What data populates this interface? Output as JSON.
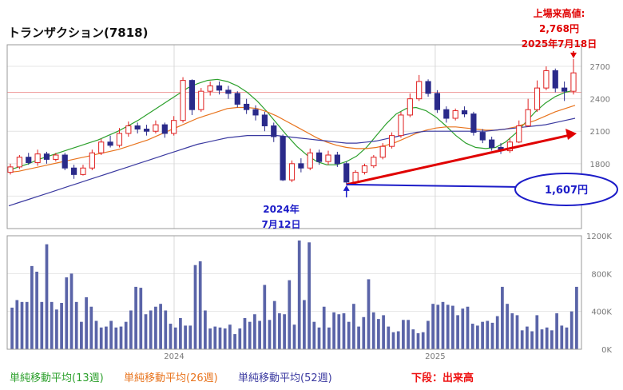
{
  "title": "トランザクション(7818)",
  "annotations": {
    "high_line1": "上場来高値:",
    "high_line2": "2,768円",
    "high_line3": "2025年7月18日",
    "low_line1": "2024年",
    "low_line2": "7月12日",
    "low_box": "1,607円"
  },
  "legend": {
    "ma13": "単純移動平均(13週)",
    "ma26": "単純移動平均(26週)",
    "ma52": "単純移動平均(52週)",
    "volume_note": "下段：出来高"
  },
  "colors": {
    "up": "#e02020",
    "down": "#2a2a8a",
    "ma13": "#2ca02c",
    "ma26": "#e8741e",
    "ma52": "#3b3aa0",
    "volume": "#5a64a8",
    "trend": "#e00000",
    "support": "#1c1cc8"
  },
  "chart_data": [
    {
      "type": "candlestick",
      "ylim": [
        1200,
        2900
      ],
      "yticks": [
        "1500",
        "1800",
        "2100",
        "2400",
        "2700"
      ],
      "xticks": [
        "2024",
        "2025"
      ],
      "x_range": [
        "2023-05-12",
        "2025-07-25"
      ],
      "hline": 2460,
      "series": [
        {
          "name": "単純移動平均(13週)",
          "values": [
            1740,
            1770,
            1800,
            1840,
            1870,
            1900,
            1930,
            1960,
            1990,
            2020,
            2060,
            2100,
            2150,
            2200,
            2260,
            2320,
            2380,
            2440,
            2500,
            2540,
            2570,
            2580,
            2560,
            2520,
            2460,
            2380,
            2280,
            2170,
            2060,
            1960,
            1880,
            1820,
            1790,
            1790,
            1820,
            1870,
            1950,
            2060,
            2170,
            2260,
            2310,
            2320,
            2290,
            2230,
            2150,
            2060,
            1990,
            1950,
            1940,
            1950,
            2000,
            2080,
            2180,
            2280,
            2360,
            2420,
            2460,
            2480
          ]
        },
        {
          "name": "単純移動平均(26週)",
          "values": [
            1720,
            1730,
            1750,
            1770,
            1790,
            1810,
            1830,
            1850,
            1870,
            1890,
            1910,
            1930,
            1960,
            1990,
            2020,
            2060,
            2100,
            2140,
            2180,
            2220,
            2250,
            2280,
            2310,
            2320,
            2320,
            2310,
            2280,
            2240,
            2190,
            2140,
            2090,
            2040,
            2000,
            1970,
            1950,
            1940,
            1940,
            1950,
            1970,
            2000,
            2040,
            2080,
            2110,
            2130,
            2140,
            2140,
            2130,
            2120,
            2110,
            2110,
            2120,
            2140,
            2170,
            2200,
            2240,
            2280,
            2310,
            2340
          ]
        },
        {
          "name": "単純移動平均(52週)",
          "values": [
            1410,
            1440,
            1470,
            1500,
            1530,
            1560,
            1590,
            1620,
            1650,
            1680,
            1710,
            1740,
            1770,
            1800,
            1830,
            1860,
            1890,
            1920,
            1950,
            1980,
            2000,
            2020,
            2040,
            2050,
            2060,
            2060,
            2060,
            2060,
            2050,
            2040,
            2030,
            2020,
            2010,
            2000,
            1990,
            1990,
            2000,
            2010,
            2030,
            2050,
            2070,
            2090,
            2100,
            2100,
            2100,
            2100,
            2100,
            2100,
            2100,
            2110,
            2120,
            2130,
            2140,
            2150,
            2160,
            2180,
            2200,
            2220
          ]
        }
      ],
      "candles": [
        {
          "o": 1720,
          "c": 1770,
          "h": 1800,
          "l": 1700
        },
        {
          "o": 1770,
          "c": 1860,
          "h": 1880,
          "l": 1750
        },
        {
          "o": 1860,
          "c": 1810,
          "h": 1900,
          "l": 1790
        },
        {
          "o": 1810,
          "c": 1890,
          "h": 1930,
          "l": 1780
        },
        {
          "o": 1890,
          "c": 1840,
          "h": 1910,
          "l": 1800
        },
        {
          "o": 1840,
          "c": 1880,
          "h": 1900,
          "l": 1820
        },
        {
          "o": 1880,
          "c": 1760,
          "h": 1900,
          "l": 1740
        },
        {
          "o": 1760,
          "c": 1700,
          "h": 1790,
          "l": 1660
        },
        {
          "o": 1700,
          "c": 1760,
          "h": 1790,
          "l": 1690
        },
        {
          "o": 1760,
          "c": 1900,
          "h": 1930,
          "l": 1740
        },
        {
          "o": 1900,
          "c": 2000,
          "h": 2030,
          "l": 1880
        },
        {
          "o": 2000,
          "c": 1970,
          "h": 2060,
          "l": 1950
        },
        {
          "o": 1970,
          "c": 2080,
          "h": 2130,
          "l": 1950
        },
        {
          "o": 2080,
          "c": 2150,
          "h": 2190,
          "l": 2050
        },
        {
          "o": 2150,
          "c": 2120,
          "h": 2180,
          "l": 2080
        },
        {
          "o": 2120,
          "c": 2100,
          "h": 2160,
          "l": 2060
        },
        {
          "o": 2100,
          "c": 2160,
          "h": 2200,
          "l": 2080
        },
        {
          "o": 2160,
          "c": 2080,
          "h": 2180,
          "l": 2040
        },
        {
          "o": 2080,
          "c": 2200,
          "h": 2240,
          "l": 2060
        },
        {
          "o": 2200,
          "c": 2570,
          "h": 2600,
          "l": 2180
        },
        {
          "o": 2570,
          "c": 2300,
          "h": 2580,
          "l": 2250
        },
        {
          "o": 2300,
          "c": 2470,
          "h": 2500,
          "l": 2280
        },
        {
          "o": 2470,
          "c": 2520,
          "h": 2560,
          "l": 2430
        },
        {
          "o": 2520,
          "c": 2480,
          "h": 2560,
          "l": 2440
        },
        {
          "o": 2480,
          "c": 2450,
          "h": 2520,
          "l": 2400
        },
        {
          "o": 2450,
          "c": 2350,
          "h": 2470,
          "l": 2320
        },
        {
          "o": 2350,
          "c": 2300,
          "h": 2400,
          "l": 2260
        },
        {
          "o": 2300,
          "c": 2250,
          "h": 2340,
          "l": 2200
        },
        {
          "o": 2250,
          "c": 2150,
          "h": 2280,
          "l": 2100
        },
        {
          "o": 2150,
          "c": 2050,
          "h": 2180,
          "l": 2000
        },
        {
          "o": 2050,
          "c": 1650,
          "h": 2070,
          "l": 1640
        },
        {
          "o": 1650,
          "c": 1800,
          "h": 1830,
          "l": 1630
        },
        {
          "o": 1800,
          "c": 1760,
          "h": 1850,
          "l": 1720
        },
        {
          "o": 1760,
          "c": 1900,
          "h": 1940,
          "l": 1740
        },
        {
          "o": 1900,
          "c": 1820,
          "h": 1930,
          "l": 1790
        },
        {
          "o": 1820,
          "c": 1880,
          "h": 1920,
          "l": 1790
        },
        {
          "o": 1880,
          "c": 1800,
          "h": 1910,
          "l": 1770
        },
        {
          "o": 1800,
          "c": 1630,
          "h": 1820,
          "l": 1607
        },
        {
          "o": 1630,
          "c": 1720,
          "h": 1740,
          "l": 1610
        },
        {
          "o": 1720,
          "c": 1780,
          "h": 1800,
          "l": 1700
        },
        {
          "o": 1780,
          "c": 1860,
          "h": 1880,
          "l": 1760
        },
        {
          "o": 1860,
          "c": 1960,
          "h": 1990,
          "l": 1840
        },
        {
          "o": 1960,
          "c": 2060,
          "h": 2090,
          "l": 1940
        },
        {
          "o": 2060,
          "c": 2250,
          "h": 2280,
          "l": 2040
        },
        {
          "o": 2250,
          "c": 2400,
          "h": 2450,
          "l": 2230
        },
        {
          "o": 2400,
          "c": 2560,
          "h": 2620,
          "l": 2380
        },
        {
          "o": 2560,
          "c": 2450,
          "h": 2580,
          "l": 2420
        },
        {
          "o": 2450,
          "c": 2300,
          "h": 2480,
          "l": 2270
        },
        {
          "o": 2300,
          "c": 2220,
          "h": 2330,
          "l": 2180
        },
        {
          "o": 2220,
          "c": 2290,
          "h": 2310,
          "l": 2200
        },
        {
          "o": 2290,
          "c": 2260,
          "h": 2330,
          "l": 2230
        },
        {
          "o": 2260,
          "c": 2090,
          "h": 2280,
          "l": 2060
        },
        {
          "o": 2090,
          "c": 2020,
          "h": 2120,
          "l": 1990
        },
        {
          "o": 2020,
          "c": 1950,
          "h": 2050,
          "l": 1920
        },
        {
          "o": 1950,
          "c": 1920,
          "h": 1990,
          "l": 1890
        },
        {
          "o": 1920,
          "c": 2000,
          "h": 2040,
          "l": 1900
        },
        {
          "o": 2000,
          "c": 2150,
          "h": 2200,
          "l": 1990
        },
        {
          "o": 2150,
          "c": 2300,
          "h": 2400,
          "l": 2140
        },
        {
          "o": 2300,
          "c": 2500,
          "h": 2570,
          "l": 2280
        },
        {
          "o": 2500,
          "c": 2660,
          "h": 2700,
          "l": 2480
        },
        {
          "o": 2660,
          "c": 2500,
          "h": 2680,
          "l": 2460
        },
        {
          "o": 2500,
          "c": 2470,
          "h": 2560,
          "l": 2380
        },
        {
          "o": 2470,
          "c": 2640,
          "h": 2768,
          "l": 2440
        }
      ],
      "trend_line": {
        "from": 1607,
        "to": 2080
      },
      "support_level": 1607
    },
    {
      "type": "bar",
      "title": "",
      "ylim": [
        0,
        1200000
      ],
      "yticks": [
        "0K",
        "400K",
        "800K",
        "1200K"
      ],
      "values": [
        440000,
        520000,
        500000,
        500000,
        880000,
        820000,
        500000,
        1110000,
        500000,
        420000,
        490000,
        760000,
        800000,
        500000,
        290000,
        550000,
        450000,
        300000,
        230000,
        240000,
        300000,
        230000,
        240000,
        290000,
        410000,
        660000,
        650000,
        370000,
        410000,
        450000,
        480000,
        410000,
        270000,
        230000,
        330000,
        250000,
        250000,
        890000,
        930000,
        410000,
        220000,
        240000,
        230000,
        220000,
        260000,
        160000,
        220000,
        330000,
        290000,
        370000,
        300000,
        680000,
        310000,
        510000,
        380000,
        370000,
        730000,
        260000,
        1150000,
        520000,
        1130000,
        290000,
        230000,
        450000,
        230000,
        390000,
        370000,
        380000,
        290000,
        480000,
        240000,
        340000,
        740000,
        390000,
        320000,
        360000,
        240000,
        180000,
        190000,
        310000,
        310000,
        210000,
        170000,
        180000,
        300000,
        480000,
        470000,
        500000,
        470000,
        460000,
        360000,
        430000,
        450000,
        270000,
        250000,
        290000,
        300000,
        280000,
        350000,
        660000,
        480000,
        380000,
        360000,
        200000,
        240000,
        190000,
        360000,
        210000,
        230000,
        200000,
        380000,
        250000,
        230000,
        400000,
        660000
      ]
    }
  ]
}
